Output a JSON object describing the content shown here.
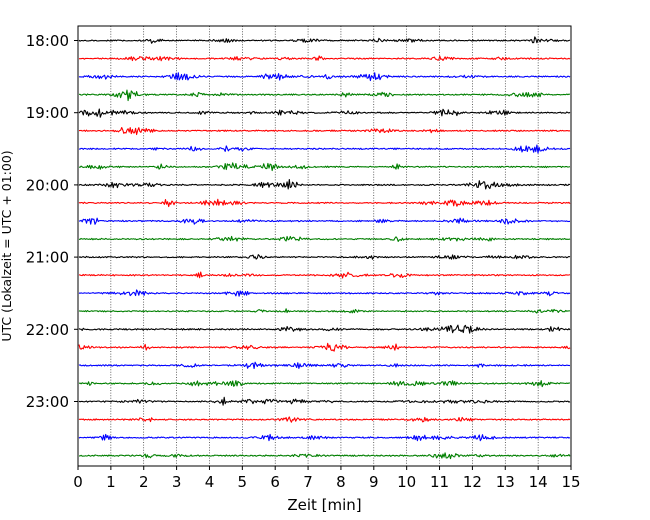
{
  "chart_data": {
    "type": "line",
    "title": "",
    "xlabel": "Zeit  [min]",
    "ylabel": "UTC (Lokalzeit = UTC + 01:00)",
    "xlim": [
      0,
      15
    ],
    "x_ticks": [
      "0",
      "1",
      "2",
      "3",
      "4",
      "5",
      "6",
      "7",
      "8",
      "9",
      "10",
      "11",
      "12",
      "13",
      "14",
      "15"
    ],
    "y_ticks": [
      "18:00",
      "19:00",
      "20:00",
      "21:00",
      "22:00",
      "23:00"
    ],
    "grid": "vertical dotted lines at each minute",
    "trace_interval_minutes": 15,
    "trace_colors": [
      "#000000",
      "#ff0000",
      "#0000ff",
      "#007f00"
    ],
    "series": [
      {
        "start": "18:00"
      },
      {
        "start": "18:15"
      },
      {
        "start": "18:30"
      },
      {
        "start": "18:45"
      },
      {
        "start": "19:00"
      },
      {
        "start": "19:15"
      },
      {
        "start": "19:30"
      },
      {
        "start": "19:45"
      },
      {
        "start": "20:00"
      },
      {
        "start": "20:15"
      },
      {
        "start": "20:30"
      },
      {
        "start": "20:45"
      },
      {
        "start": "21:00"
      },
      {
        "start": "21:15"
      },
      {
        "start": "21:30"
      },
      {
        "start": "21:45"
      },
      {
        "start": "22:00"
      },
      {
        "start": "22:15"
      },
      {
        "start": "22:30"
      },
      {
        "start": "22:45"
      },
      {
        "start": "23:00"
      },
      {
        "start": "23:15"
      },
      {
        "start": "23:30"
      },
      {
        "start": "23:45"
      }
    ]
  }
}
